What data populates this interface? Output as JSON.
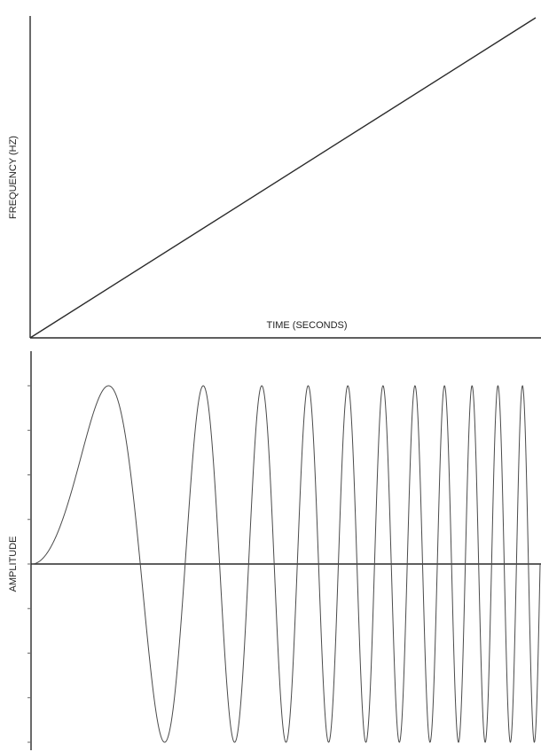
{
  "chart_data": [
    {
      "type": "line",
      "title": "",
      "xlabel": "TIME (SECONDS)",
      "ylabel": "FREQUENCY (HZ)",
      "grid": false,
      "legend": "none",
      "tick_labels": false,
      "x": [
        0,
        1
      ],
      "y": [
        0,
        1
      ],
      "xlim": [
        0,
        1
      ],
      "ylim": [
        0,
        1
      ],
      "series": [
        {
          "values": [
            0,
            1
          ]
        }
      ],
      "color": "#2a2a2a"
    },
    {
      "type": "line",
      "title": "",
      "xlabel": "",
      "ylabel": "AMPLITUDE",
      "grid": false,
      "legend": "none",
      "tick_labels": false,
      "xlim": [
        0,
        1
      ],
      "ylim": [
        -1,
        1
      ],
      "minor_ticks_y": 9,
      "function": "sin(k * t^2)",
      "zero_crossings": 22,
      "color": "#4a4a4a"
    }
  ]
}
